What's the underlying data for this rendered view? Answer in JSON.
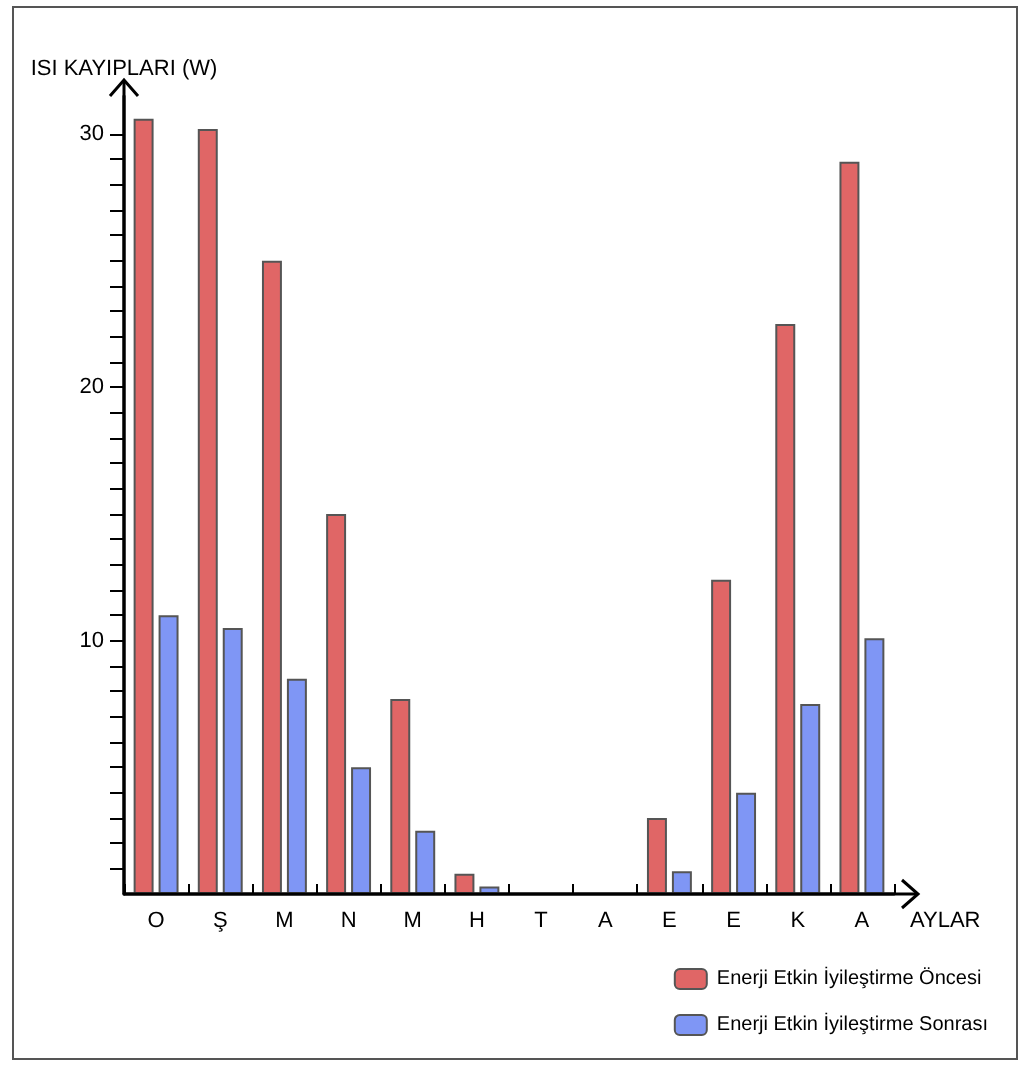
{
  "chart_data": {
    "type": "bar",
    "xlabel": "AYLAR",
    "ylabel": "ISI KAYIPLARI (W)",
    "categories": [
      "O",
      "Ş",
      "M",
      "N",
      "M",
      "H",
      "T",
      "A",
      "E",
      "E",
      "K",
      "A"
    ],
    "series": [
      {
        "name": "Enerji Etkin İyileştirme Öncesi",
        "color": "#e06666",
        "values": [
          30.6,
          30.2,
          25.0,
          15.0,
          7.7,
          0.8,
          0,
          0,
          3.0,
          12.4,
          22.5,
          28.9
        ]
      },
      {
        "name": "Enerji Etkin İyileştirme Sonrası",
        "color": "#7f96f5",
        "values": [
          11.0,
          10.5,
          8.5,
          5.0,
          2.5,
          0.3,
          0,
          0,
          0.9,
          4.0,
          7.5,
          10.1
        ]
      }
    ],
    "ylim": [
      0,
      31.5
    ],
    "yticks": [
      {
        "value": 1,
        "label": null
      },
      {
        "value": 2,
        "label": null
      },
      {
        "value": 3,
        "label": null
      },
      {
        "value": 4,
        "label": null
      },
      {
        "value": 5,
        "label": null
      },
      {
        "value": 6,
        "label": null
      },
      {
        "value": 7,
        "label": null
      },
      {
        "value": 8,
        "label": null
      },
      {
        "value": 9,
        "label": null
      },
      10,
      {
        "value": 11,
        "label": null
      },
      {
        "value": 12,
        "label": null
      },
      {
        "value": 13,
        "label": null
      },
      {
        "value": 14,
        "label": null
      },
      {
        "value": 15,
        "label": null
      },
      {
        "value": 16,
        "label": null
      },
      {
        "value": 17,
        "label": null
      },
      {
        "value": 18,
        "label": null
      },
      {
        "value": 19,
        "label": null
      },
      20,
      {
        "value": 21,
        "label": null
      },
      {
        "value": 22,
        "label": null
      },
      {
        "value": 23,
        "label": null
      },
      {
        "value": 24,
        "label": null
      },
      {
        "value": 25,
        "label": null
      },
      {
        "value": 26,
        "label": null
      },
      {
        "value": 27,
        "label": null
      },
      {
        "value": 28,
        "label": null
      },
      {
        "value": 29,
        "label": null
      },
      30
    ],
    "grid": false,
    "legend": "bottom right"
  }
}
